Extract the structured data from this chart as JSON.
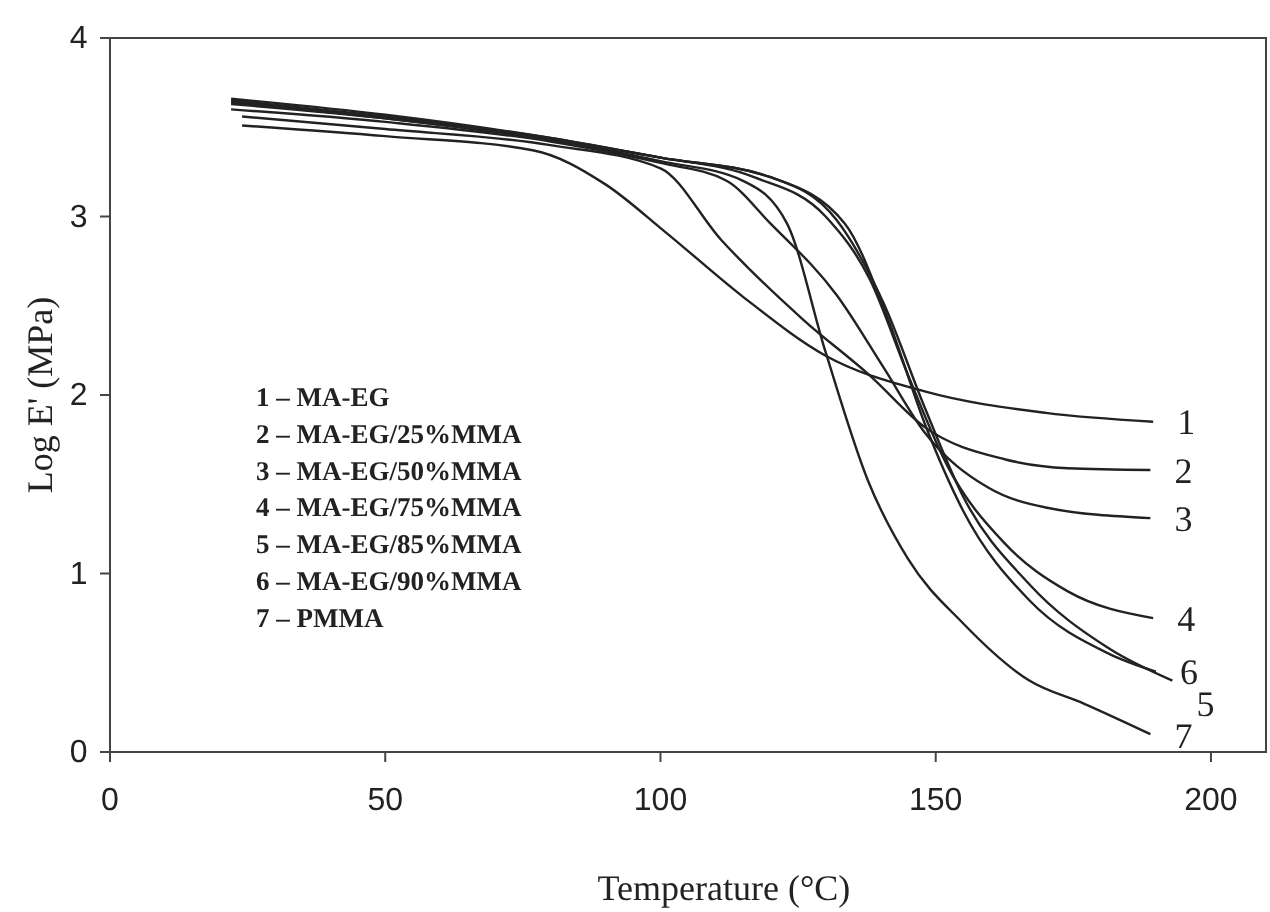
{
  "chart_data": {
    "type": "line",
    "xlabel": "Temperature (°C)",
    "ylabel": "Log E' (MPa)",
    "xlim": [
      0,
      210
    ],
    "ylim": [
      0,
      4
    ],
    "xticks": [
      0,
      50,
      100,
      150,
      200
    ],
    "yticks": [
      0,
      1,
      2,
      3,
      4
    ],
    "grid": false,
    "legend": "right",
    "marker": "none",
    "line_style": "solid",
    "series": [
      {
        "name": "1",
        "color": "#222222",
        "x": [
          24,
          50,
          77,
          90,
          101,
          115,
          130,
          148,
          170,
          189.5
        ],
        "values": [
          3.51,
          3.45,
          3.37,
          3.18,
          2.91,
          2.55,
          2.22,
          2.02,
          1.9,
          1.85
        ]
      },
      {
        "name": "2",
        "color": "#222222",
        "x": [
          24,
          50,
          80,
          100,
          111,
          126,
          138,
          148,
          162.5,
          174,
          189
        ],
        "values": [
          3.56,
          3.49,
          3.4,
          3.27,
          2.87,
          2.42,
          2.11,
          1.82,
          1.64,
          1.59,
          1.58
        ]
      },
      {
        "name": "3",
        "color": "#222222",
        "x": [
          22,
          50,
          80,
          100,
          112,
          120,
          132,
          140.6,
          148,
          159.6,
          170,
          189
        ],
        "values": [
          3.6,
          3.53,
          3.42,
          3.3,
          3.2,
          2.96,
          2.56,
          2.15,
          1.79,
          1.48,
          1.37,
          1.31
        ]
      },
      {
        "name": "4",
        "color": "#222222",
        "x": [
          22,
          50,
          80,
          100,
          117,
          130,
          138,
          145,
          152,
          162.5,
          174,
          189.5
        ],
        "values": [
          3.64,
          3.55,
          3.43,
          3.33,
          3.22,
          3.0,
          2.65,
          2.11,
          1.61,
          1.17,
          0.9,
          0.75
        ]
      },
      {
        "name": "5",
        "color": "#222222",
        "x": [
          22,
          50,
          80,
          100,
          120,
          132,
          140.6,
          148,
          155,
          167,
          181.5,
          193
        ],
        "values": [
          3.65,
          3.56,
          3.44,
          3.33,
          3.22,
          2.98,
          2.51,
          1.93,
          1.43,
          0.94,
          0.58,
          0.4
        ]
      },
      {
        "name": "6",
        "color": "#222222",
        "x": [
          22,
          50,
          80,
          100,
          120,
          133.5,
          141.4,
          148,
          155,
          167,
          181.5,
          190
        ],
        "values": [
          3.66,
          3.57,
          3.44,
          3.33,
          3.22,
          2.96,
          2.42,
          1.84,
          1.35,
          0.85,
          0.55,
          0.45
        ]
      },
      {
        "name": "7",
        "color": "#222222",
        "x": [
          22,
          50,
          80,
          100,
          115,
          123,
          130,
          137.7,
          145,
          155,
          167,
          177,
          189
        ],
        "values": [
          3.63,
          3.55,
          3.43,
          3.31,
          3.2,
          2.96,
          2.24,
          1.52,
          1.08,
          0.72,
          0.4,
          0.27,
          0.1
        ]
      }
    ],
    "annotations": [
      "1 – MA-EG",
      "2 – MA-EG/25%MMA",
      "3 – MA-EG/50%MMA",
      "4 – MA-EG/75%MMA",
      "5 – MA-EG/85%MMA",
      "6 – MA-EG/90%MMA",
      "7 – PMMA"
    ]
  }
}
